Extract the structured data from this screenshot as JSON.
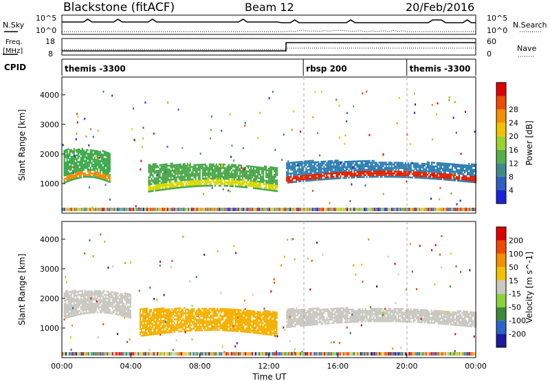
{
  "header": {
    "station": "Blackstone (fitACF)",
    "beam": "Beam 12",
    "date": "20/Feb/2016"
  },
  "top_panels": {
    "nsky_label": "N.Sky",
    "nsky_ticks": [
      "10^5",
      "10^0"
    ],
    "nsearch_label": "N.Search",
    "freq_label": "Freq.",
    "freq_unit": "[MHz]",
    "freq_ticks": [
      "18",
      "8"
    ],
    "nave_label": "Nave",
    "nave_ticks": [
      "60",
      "0"
    ],
    "cpid_label": "CPID",
    "cpid_segments": [
      {
        "label": "themis -3300",
        "start": 0,
        "end": 14
      },
      {
        "label": "rbsp 200",
        "start": 14,
        "end": 20
      },
      {
        "label": "themis -3300",
        "start": 20,
        "end": 24
      }
    ]
  },
  "chart_data": [
    {
      "type": "heatmap",
      "name": "power",
      "ylabel": "Slant Range [km]",
      "xlim": [
        0,
        24
      ],
      "ylim": [
        0,
        4600
      ],
      "y_ticks": [
        "1000",
        "2000",
        "3000",
        "4000"
      ],
      "colorbar": {
        "label": "Power [dB]",
        "ticks": [
          "4",
          "8",
          "12",
          "16",
          "20",
          "24",
          "28"
        ],
        "colors": [
          "#1a22d8",
          "#2f5fc0",
          "#3e8a8a",
          "#56b04a",
          "#9ad22c",
          "#f2c200",
          "#f39000",
          "#ee4a00",
          "#dd0000"
        ]
      },
      "bands": [
        {
          "t0": 0.1,
          "t1": 2.8,
          "r0": 1000,
          "r1": 1800,
          "r1e": 2000,
          "color": "#3aa84a",
          "core": "#f08a00"
        },
        {
          "t0": 5.0,
          "t1": 12.5,
          "r0": 700,
          "r1": 1100,
          "r1e": 1500,
          "color": "#4aa84a",
          "core": "#d8d800"
        },
        {
          "t0": 13.0,
          "t1": 24.0,
          "r0": 1000,
          "r1": 1150,
          "r1e": 1600,
          "color": "#2f7fb0",
          "core": "#e02000"
        }
      ]
    },
    {
      "type": "heatmap",
      "name": "velocity",
      "xlabel": "Time UT",
      "ylabel": "Slant Range [km]",
      "xlim": [
        0,
        24
      ],
      "ylim": [
        0,
        4600
      ],
      "x_ticks": [
        "00:00",
        "04:00",
        "08:00",
        "12:00",
        "16:00",
        "20:00",
        "00:00"
      ],
      "y_ticks": [
        "1000",
        "2000",
        "3000",
        "4000"
      ],
      "colorbar": {
        "label": "Velocity [m s^-1]",
        "ticks": [
          "200",
          "100",
          "50",
          "15",
          "-15",
          "-50",
          "-100",
          "-200"
        ],
        "colors": [
          "#1a1aa0",
          "#2a64c8",
          "#3a8a3a",
          "#8ad23a",
          "#c8c8c0",
          "#f2c200",
          "#f39000",
          "#ee4a00",
          "#dd0000"
        ]
      },
      "bands": [
        {
          "t0": 0.1,
          "t1": 4.0,
          "r0": 1300,
          "r1": 1800,
          "r1e": 2100,
          "color": "#c8c8c0",
          "core": "#c8c8c0"
        },
        {
          "t0": 4.5,
          "t1": 12.5,
          "r0": 700,
          "r1": 1100,
          "r1e": 1500,
          "color": "#f5b000",
          "core": "#f5b000"
        },
        {
          "t0": 13.0,
          "t1": 24.0,
          "r0": 1000,
          "r1": 1100,
          "r1e": 1500,
          "color": "#c8c8c0",
          "core": "#c8c8c0"
        }
      ]
    }
  ]
}
